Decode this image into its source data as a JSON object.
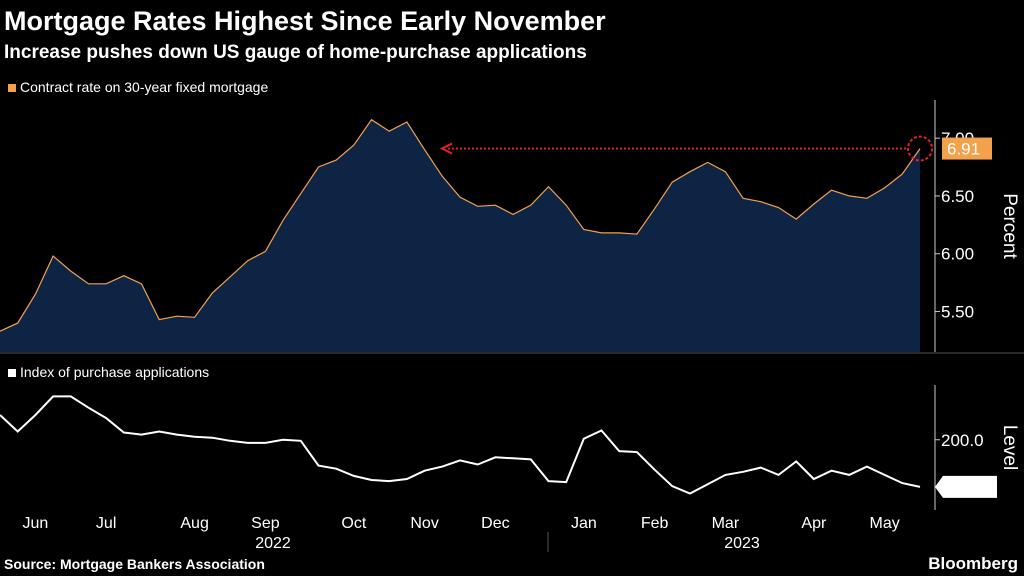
{
  "title": "Mortgage Rates Highest Since Early November",
  "subtitle": "Increase pushes down US gauge of home-purchase applications",
  "source": "Source: Mortgage Bankers Association",
  "brand": "Bloomberg",
  "chart_data": [
    {
      "type": "area",
      "series": [
        {
          "name": "Contract rate on 30-year fixed mortgage",
          "color": "#f4a14b",
          "fill": "#0d2444",
          "values": [
            5.33,
            5.4,
            5.65,
            5.98,
            5.85,
            5.74,
            5.74,
            5.81,
            5.74,
            5.43,
            5.46,
            5.45,
            5.66,
            5.8,
            5.94,
            6.02,
            6.29,
            6.52,
            6.75,
            6.81,
            6.94,
            7.16,
            7.06,
            7.14,
            6.9,
            6.67,
            6.49,
            6.41,
            6.42,
            6.34,
            6.42,
            6.58,
            6.42,
            6.21,
            6.18,
            6.18,
            6.17,
            6.39,
            6.62,
            6.71,
            6.79,
            6.71,
            6.48,
            6.45,
            6.4,
            6.3,
            6.43,
            6.55,
            6.5,
            6.48,
            6.57,
            6.69,
            6.91
          ]
        }
      ],
      "ylim": [
        5.15,
        7.33
      ],
      "yticks": [
        {
          "value": 5.5,
          "label": "5.50"
        },
        {
          "value": 6,
          "label": "6.00"
        },
        {
          "value": 6.5,
          "label": "6.50"
        },
        {
          "value": 7,
          "label": "7.00"
        }
      ],
      "ylabel": "Percent"
    },
    {
      "type": "line",
      "series": [
        {
          "name": "Index of purchase applications",
          "color": "#ffffff",
          "values": [
            224,
            208,
            224,
            242,
            242,
            231,
            221,
            207,
            205,
            208,
            205,
            203,
            202,
            199,
            197,
            197,
            200,
            199,
            175,
            172,
            165,
            161,
            160,
            162,
            170,
            174,
            180,
            176,
            183,
            182,
            181,
            160,
            159,
            201,
            209,
            189,
            188,
            171,
            155,
            148,
            157,
            166,
            169,
            173,
            166,
            179,
            162,
            170,
            166,
            174,
            166,
            158,
            154.4
          ]
        }
      ],
      "categories": [
        null,
        null,
        "Jun",
        null,
        null,
        null,
        "Jul",
        null,
        null,
        null,
        null,
        "Aug",
        null,
        null,
        null,
        "Sep",
        null,
        null,
        null,
        null,
        "Oct",
        null,
        null,
        null,
        "Nov",
        null,
        null,
        null,
        "Dec",
        null,
        null,
        null,
        null,
        "Jan",
        null,
        null,
        null,
        "Feb",
        null,
        null,
        null,
        "Mar",
        null,
        null,
        null,
        null,
        "Apr",
        null,
        null,
        null,
        "May",
        null,
        null
      ],
      "x_group_labels": [
        "2022",
        "2023"
      ],
      "ylim": [
        132,
        253
      ],
      "yticks": [
        {
          "value": 200,
          "label": "200.0"
        }
      ],
      "ylabel": "Level"
    }
  ]
}
